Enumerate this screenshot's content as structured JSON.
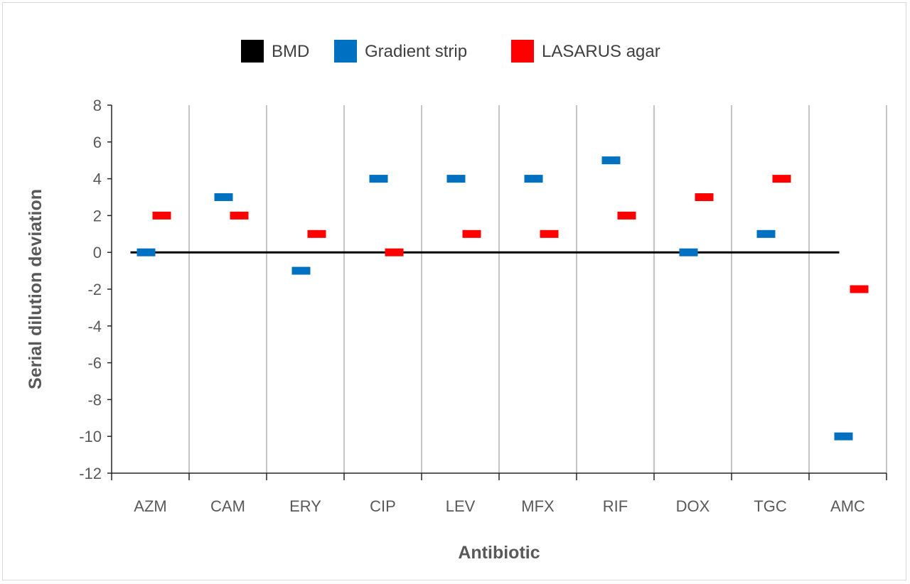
{
  "chart_data": {
    "type": "scatter",
    "xlabel": "Antibiotic",
    "ylabel": "Serial dilution deviation",
    "categories": [
      "AZM",
      "CAM",
      "ERY",
      "CIP",
      "LEV",
      "MFX",
      "RIF",
      "DOX",
      "TGC",
      "AMC"
    ],
    "ylim": [
      -12,
      8
    ],
    "yticks": [
      8,
      6,
      4,
      2,
      0,
      -2,
      -4,
      -6,
      -8,
      -10,
      -12
    ],
    "grid": "vertical category separators",
    "legend_position": "top",
    "series": [
      {
        "name": "BMD",
        "color": "#000000",
        "marker": "line",
        "values": [
          0,
          0,
          0,
          0,
          0,
          0,
          0,
          0,
          0,
          0
        ]
      },
      {
        "name": "Gradient strip",
        "color": "#0070C0",
        "marker": "dash",
        "values": [
          0,
          3,
          -1,
          4,
          4,
          4,
          5,
          0,
          1,
          -10
        ]
      },
      {
        "name": "LASARUS agar",
        "color": "#FF0000",
        "marker": "dash",
        "values": [
          2,
          2,
          1,
          0,
          1,
          1,
          2,
          3,
          4,
          -2
        ]
      }
    ]
  }
}
